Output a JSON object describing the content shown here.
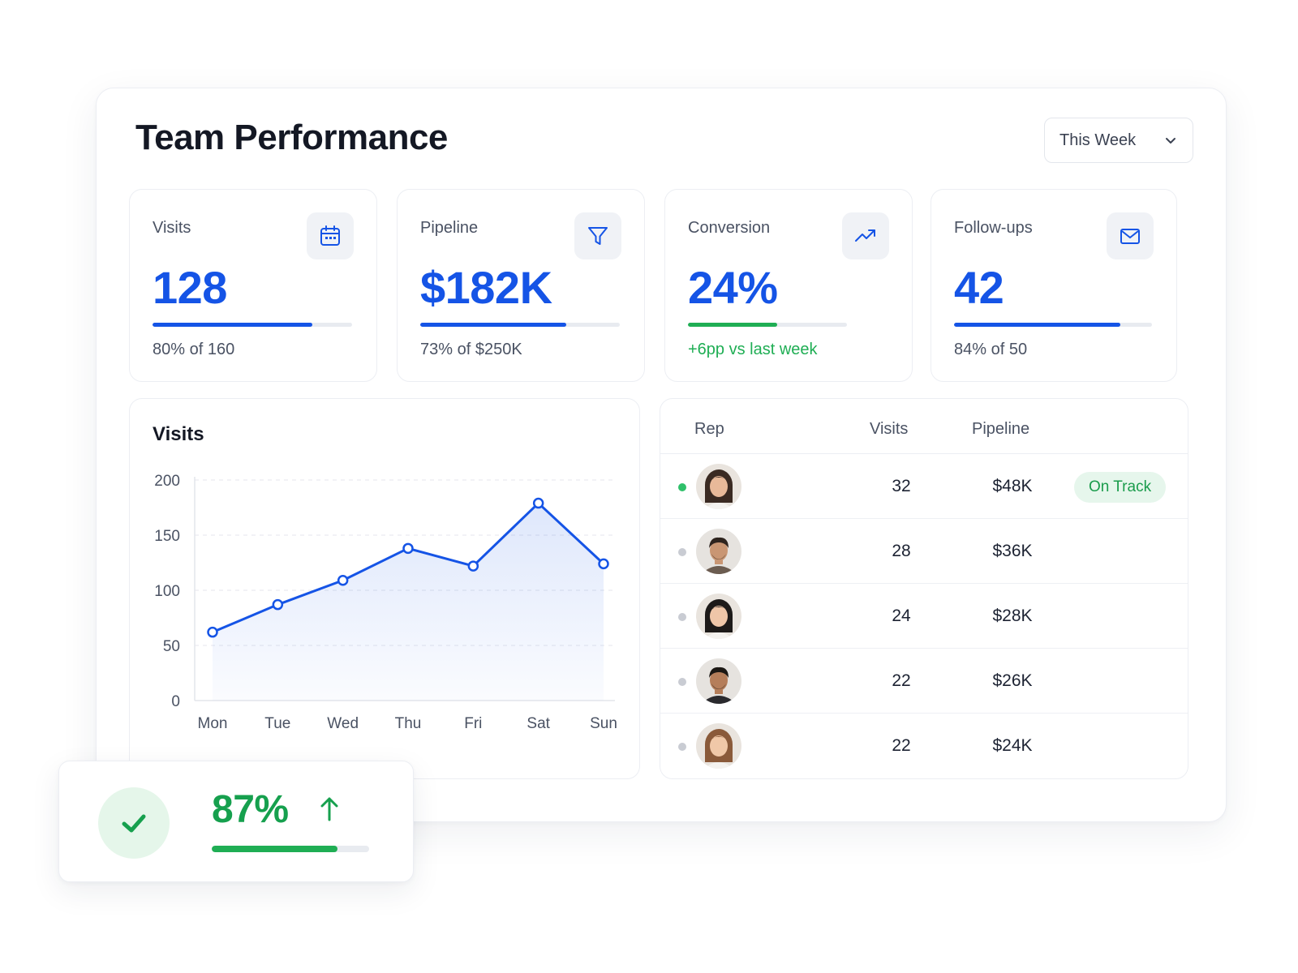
{
  "header": {
    "title": "Team Performance",
    "range_select": {
      "value": "This Week"
    }
  },
  "kpis": [
    {
      "label": "Visits",
      "value": "128",
      "progress": 0.8,
      "footer": "80% of 160",
      "icon": "calendar-icon",
      "accent": "#1554e6"
    },
    {
      "label": "Pipeline",
      "value": "$182K",
      "progress": 0.73,
      "footer": "73% of $250K",
      "icon": "funnel-icon",
      "accent": "#1554e6"
    },
    {
      "label": "Conversion",
      "value": "24%",
      "progress": 0.56,
      "footer": "+6pp vs last week",
      "icon": "trending-up-icon",
      "accent": "#1fae54"
    },
    {
      "label": "Follow-ups",
      "value": "42",
      "progress": 0.84,
      "footer": "84% of 50",
      "icon": "mail-icon",
      "accent": "#1554e6"
    }
  ],
  "chart": {
    "title": "Visits",
    "chart_data": {
      "type": "area",
      "title": "Visits",
      "categories": [
        "Mon",
        "Tue",
        "Wed",
        "Thu",
        "Fri",
        "Sat",
        "Sun"
      ],
      "values": [
        62,
        87,
        109,
        138,
        122,
        179,
        124
      ],
      "ylim": [
        0,
        200
      ],
      "yticks": [
        "0",
        "50",
        "100",
        "150",
        "200"
      ],
      "grid": true,
      "color": "#1554e6"
    }
  },
  "table": {
    "columns": [
      "Rep",
      "Visits",
      "Pipeline"
    ],
    "rows": [
      {
        "avatar": "avatar-woman-icon",
        "visits": "32",
        "pipeline": "$48K",
        "status": "On Track",
        "active": true
      },
      {
        "avatar": "avatar-man-icon",
        "visits": "28",
        "pipeline": "$36K",
        "status": "",
        "active": false
      },
      {
        "avatar": "avatar-woman-icon",
        "visits": "24",
        "pipeline": "$28K",
        "status": "",
        "active": false
      },
      {
        "avatar": "avatar-man-icon",
        "visits": "22",
        "pipeline": "$26K",
        "status": "",
        "active": false
      },
      {
        "avatar": "avatar-woman-icon",
        "visits": "22",
        "pipeline": "$24K",
        "status": "",
        "active": false
      }
    ]
  },
  "summary_card": {
    "value": "87%",
    "progress": 0.8,
    "icon": "check-icon",
    "trend_icon": "arrow-up-icon",
    "color": "#16a04e"
  }
}
